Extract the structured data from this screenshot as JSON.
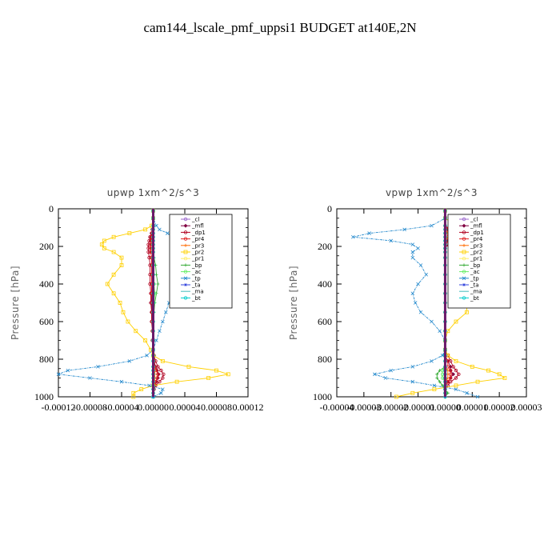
{
  "title": "cam144_lscale_pmf_uppsi1  BUDGET at140E,2N",
  "chart_data": [
    {
      "type": "line",
      "title": "upwp   1xm^2/s^3",
      "ylabel": "Pressure [hPa]",
      "xlabel": "",
      "ylim": [
        1000,
        0
      ],
      "xlim": [
        -0.00012,
        0.00012
      ],
      "yticks": [
        "0",
        "200",
        "400",
        "600",
        "800",
        "1000"
      ],
      "xticks": [
        "-0.00012",
        "-0.00008",
        "-0.00004",
        "0.00000",
        "0.00004",
        "0.00008",
        "0.00012"
      ],
      "legend_position": "top-right",
      "y": [
        10,
        50,
        90,
        110,
        130,
        150,
        170,
        190,
        210,
        230,
        260,
        300,
        350,
        400,
        450,
        500,
        550,
        600,
        650,
        700,
        750,
        780,
        810,
        840,
        860,
        880,
        900,
        920,
        940,
        960,
        980,
        1000
      ],
      "series": [
        {
          "name": "_cl",
          "color": "#9966cc",
          "marker": "circle",
          "values": [
            0,
            0,
            0,
            0,
            0,
            0,
            0,
            0,
            0,
            0,
            0,
            0,
            0,
            0,
            0,
            0,
            0,
            0,
            0,
            0,
            0,
            0,
            0,
            0,
            0,
            0,
            0,
            0,
            0,
            0,
            0,
            0
          ]
        },
        {
          "name": "_mfl",
          "color": "#800040",
          "marker": "diamond",
          "values": [
            0,
            0,
            0,
            -1e-06,
            -2e-06,
            -3e-06,
            -3e-06,
            -3e-06,
            -3e-06,
            -3e-06,
            -2e-06,
            -2e-06,
            -2e-06,
            -2e-06,
            -2e-06,
            -2e-06,
            -2e-06,
            -1e-06,
            -1e-06,
            0,
            0,
            0,
            1e-06,
            3e-06,
            5e-06,
            7e-06,
            6e-06,
            4e-06,
            2e-06,
            0,
            0,
            0
          ]
        },
        {
          "name": "_dp1",
          "color": "#b00020",
          "marker": "circle",
          "values": [
            0,
            0,
            0,
            -1e-06,
            -2e-06,
            -4e-06,
            -5e-06,
            -6e-06,
            -6e-06,
            -6e-06,
            -5e-06,
            -4e-06,
            -4e-06,
            -4e-06,
            -3e-06,
            -3e-06,
            -2e-06,
            -2e-06,
            -1e-06,
            -1e-06,
            0,
            1e-06,
            3e-06,
            6e-06,
            1e-05,
            1.3e-05,
            1.2e-05,
            8e-06,
            3e-06,
            1e-06,
            0,
            0
          ]
        },
        {
          "name": "_pr4",
          "color": "#e02020",
          "marker": "circle",
          "values": [
            0,
            0,
            0,
            0,
            -1e-06,
            -2e-06,
            -2e-06,
            -3e-06,
            -3e-06,
            -3e-06,
            -2e-06,
            -2e-06,
            -2e-06,
            -2e-06,
            -2e-06,
            -1e-06,
            -1e-06,
            -1e-06,
            -1e-06,
            0,
            0,
            0,
            1e-06,
            2e-06,
            4e-06,
            6e-06,
            5e-06,
            3e-06,
            1e-06,
            0,
            0,
            0
          ]
        },
        {
          "name": "_pr3",
          "color": "#ff6a00",
          "marker": "plus",
          "values": [
            0,
            0,
            0,
            0,
            0,
            -1e-06,
            -1e-06,
            -1e-06,
            -1e-06,
            -1e-06,
            -1e-06,
            -1e-06,
            -1e-06,
            -1e-06,
            -1e-06,
            0,
            0,
            0,
            0,
            0,
            0,
            0,
            0,
            1e-06,
            2e-06,
            2e-06,
            2e-06,
            1e-06,
            0,
            0,
            0,
            0
          ]
        },
        {
          "name": "_pr2",
          "color": "#ffd000",
          "marker": "square",
          "values": [
            0,
            0,
            -2e-06,
            -1e-05,
            -3e-05,
            -5e-05,
            -6.2e-05,
            -6.5e-05,
            -6.2e-05,
            -5e-05,
            -4e-05,
            -4e-05,
            -5e-05,
            -5.8e-05,
            -5e-05,
            -4.2e-05,
            -3.8e-05,
            -3.2e-05,
            -2.2e-05,
            -1e-05,
            -3e-06,
            0,
            1.2e-05,
            4.5e-05,
            8e-05,
            9.5e-05,
            7e-05,
            3e-05,
            0,
            -1.5e-05,
            -2.5e-05,
            -2.5e-05
          ]
        },
        {
          "name": "_pr1",
          "color": "#ffee66",
          "marker": "circle",
          "values": [
            0,
            0,
            0,
            0,
            0,
            0,
            0,
            0,
            0,
            0,
            0,
            0,
            0,
            0,
            0,
            0,
            0,
            0,
            0,
            0,
            0,
            0,
            0,
            0,
            0,
            0,
            0,
            0,
            0,
            0,
            0,
            0
          ]
        },
        {
          "name": "_bp",
          "color": "#33aa33",
          "marker": "plus",
          "values": [
            0,
            0,
            0,
            0,
            0,
            0,
            0,
            0,
            0,
            0,
            1e-06,
            3e-06,
            4e-06,
            6e-06,
            4e-06,
            2e-06,
            1e-06,
            0,
            0,
            0,
            0,
            0,
            0,
            0,
            0,
            0,
            0,
            0,
            0,
            0,
            0,
            0
          ]
        },
        {
          "name": "_ac",
          "color": "#66ee66",
          "marker": "circle",
          "values": [
            0,
            0,
            0,
            0,
            0,
            0,
            0,
            0,
            0,
            0,
            0,
            0,
            0,
            1e-06,
            2e-06,
            1e-06,
            0,
            0,
            0,
            0,
            0,
            0,
            0,
            0,
            0,
            0,
            0,
            0,
            0,
            0,
            0,
            0
          ]
        },
        {
          "name": "_tp",
          "color": "#2288cc",
          "marker": "x",
          "values": [
            0,
            0,
            4e-06,
            8e-06,
            1.8e-05,
            2.8e-05,
            3.5e-05,
            3.8e-05,
            4e-05,
            4e-05,
            3.6e-05,
            3.2e-05,
            2.8e-05,
            2.6e-05,
            2.4e-05,
            2e-05,
            1.6e-05,
            1.2e-05,
            8e-06,
            4e-06,
            0,
            -8e-06,
            -3e-05,
            -7e-05,
            -0.000108,
            -0.00012,
            -8e-05,
            -4e-05,
            -5e-06,
            1.2e-05,
            1e-05,
            0
          ]
        },
        {
          "name": "_ta",
          "color": "#3344dd",
          "marker": "star",
          "values": [
            0,
            0,
            0,
            0,
            0,
            0,
            0,
            0,
            0,
            0,
            0,
            0,
            0,
            0,
            0,
            0,
            0,
            0,
            0,
            0,
            0,
            0,
            0,
            0,
            0,
            0,
            0,
            0,
            0,
            0,
            0,
            0
          ]
        },
        {
          "name": "_ma",
          "color": "#44bbbb",
          "marker": "none",
          "values": [
            0,
            0,
            0,
            0,
            0,
            0,
            0,
            0,
            0,
            0,
            0,
            0,
            0,
            0,
            0,
            0,
            0,
            0,
            0,
            0,
            0,
            0,
            0,
            0,
            0,
            0,
            0,
            0,
            0,
            0,
            0,
            0
          ]
        },
        {
          "name": "_bt",
          "color": "#00cccc",
          "marker": "circle",
          "values": [
            0,
            0,
            0,
            0,
            0,
            0,
            0,
            0,
            0,
            0,
            0,
            0,
            0,
            0,
            0,
            0,
            0,
            0,
            0,
            0,
            0,
            0,
            0,
            0,
            0,
            0,
            0,
            0,
            0,
            0,
            0,
            0
          ]
        }
      ]
    },
    {
      "type": "line",
      "title": "vpwp   1xm^2/s^3",
      "ylabel": "Pressure [hPa]",
      "xlabel": "",
      "ylim": [
        1000,
        0
      ],
      "xlim": [
        -4e-05,
        3e-05
      ],
      "yticks": [
        "0",
        "200",
        "400",
        "600",
        "800",
        "1000"
      ],
      "xticks": [
        "-0.00004",
        "-0.00003",
        "-0.00002",
        "-0.00001",
        "0.00000",
        "0.00001",
        "0.00002",
        "0.00003"
      ],
      "legend_position": "top-right",
      "y": [
        10,
        50,
        90,
        110,
        130,
        150,
        170,
        190,
        210,
        230,
        260,
        300,
        350,
        400,
        450,
        500,
        550,
        600,
        650,
        700,
        750,
        780,
        810,
        840,
        860,
        880,
        900,
        920,
        940,
        960,
        980,
        1000
      ],
      "series": [
        {
          "name": "_cl",
          "color": "#9966cc",
          "marker": "circle",
          "values": [
            0,
            0,
            0,
            0,
            0,
            0,
            0,
            0,
            0,
            0,
            0,
            0,
            0,
            0,
            0,
            0,
            0,
            0,
            0,
            0,
            0,
            0,
            0,
            0,
            0,
            0,
            0,
            0,
            0,
            0,
            0,
            0
          ]
        },
        {
          "name": "_mfl",
          "color": "#800040",
          "marker": "diamond",
          "values": [
            0,
            0,
            0,
            1e-06,
            2e-06,
            2e-06,
            1e-06,
            0,
            0,
            0,
            0,
            0,
            0,
            0,
            0,
            0,
            0,
            0,
            0,
            0,
            0,
            0,
            1e-06,
            2e-06,
            2e-06,
            3e-06,
            2e-06,
            1e-06,
            0,
            0,
            0,
            0
          ]
        },
        {
          "name": "_dp1",
          "color": "#b00020",
          "marker": "circle",
          "values": [
            0,
            0,
            0,
            2e-06,
            3e-06,
            3e-06,
            2e-06,
            1e-06,
            0,
            0,
            0,
            0,
            0,
            0,
            0,
            0,
            0,
            0,
            0,
            0,
            0,
            1e-06,
            2e-06,
            3e-06,
            4e-06,
            5e-06,
            4e-06,
            2e-06,
            1e-06,
            0,
            0,
            0
          ]
        },
        {
          "name": "_pr4",
          "color": "#e02020",
          "marker": "circle",
          "values": [
            0,
            0,
            0,
            1e-06,
            1e-06,
            1e-06,
            1e-06,
            0,
            0,
            0,
            0,
            0,
            0,
            0,
            0,
            0,
            0,
            0,
            0,
            0,
            0,
            0,
            1e-06,
            1e-06,
            2e-06,
            2e-06,
            2e-06,
            1e-06,
            0,
            0,
            0,
            0
          ]
        },
        {
          "name": "_pr3",
          "color": "#ff6a00",
          "marker": "plus",
          "values": [
            0,
            0,
            0,
            0,
            1e-06,
            1e-06,
            0,
            0,
            0,
            0,
            0,
            0,
            0,
            0,
            0,
            0,
            0,
            0,
            0,
            0,
            0,
            0,
            0,
            0,
            1e-06,
            1e-06,
            1e-06,
            0,
            0,
            0,
            0,
            0
          ]
        },
        {
          "name": "_pr2",
          "color": "#ffd000",
          "marker": "square",
          "values": [
            0,
            0,
            4e-06,
            1.2e-05,
            2.2e-05,
            2e-05,
            1e-05,
            6e-06,
            6e-06,
            4e-06,
            3e-06,
            4e-06,
            5e-06,
            5e-06,
            6e-06,
            8e-06,
            8e-06,
            4e-06,
            1e-06,
            0,
            0,
            1e-06,
            4e-06,
            1e-05,
            1.6e-05,
            2e-05,
            2.2e-05,
            1.2e-05,
            4e-06,
            -4e-06,
            -1.2e-05,
            -1.8e-05
          ]
        },
        {
          "name": "_pr1",
          "color": "#ffee66",
          "marker": "circle",
          "values": [
            0,
            0,
            0,
            0,
            0,
            0,
            0,
            0,
            0,
            0,
            0,
            0,
            0,
            0,
            0,
            0,
            0,
            0,
            0,
            0,
            0,
            0,
            0,
            0,
            0,
            0,
            0,
            0,
            0,
            0,
            0,
            0
          ]
        },
        {
          "name": "_bp",
          "color": "#33aa33",
          "marker": "plus",
          "values": [
            0,
            0,
            0,
            0,
            0,
            0,
            0,
            0,
            0,
            0,
            0,
            0,
            0,
            0,
            0,
            0,
            0,
            0,
            0,
            0,
            0,
            0,
            0,
            0,
            -2e-06,
            -3e-06,
            -3e-06,
            -2e-06,
            -1e-06,
            0,
            1e-06,
            0
          ]
        },
        {
          "name": "_ac",
          "color": "#66ee66",
          "marker": "circle",
          "values": [
            0,
            0,
            0,
            0,
            0,
            0,
            0,
            0,
            0,
            0,
            0,
            0,
            0,
            0,
            0,
            0,
            0,
            0,
            0,
            0,
            0,
            0,
            0,
            0,
            -1e-06,
            -1e-06,
            -1e-06,
            0,
            0,
            0,
            0,
            0
          ]
        },
        {
          "name": "_tp",
          "color": "#2288cc",
          "marker": "x",
          "values": [
            0,
            0,
            -5e-06,
            -1.5e-05,
            -2.8e-05,
            -3.4e-05,
            -2e-05,
            -1.2e-05,
            -1e-05,
            -1.2e-05,
            -1.2e-05,
            -9e-06,
            -7e-06,
            -1e-05,
            -1.2e-05,
            -1.1e-05,
            -9e-06,
            -5e-06,
            -2e-06,
            0,
            0,
            -1e-06,
            -5e-06,
            -1.2e-05,
            -2e-05,
            -2.6e-05,
            -2.2e-05,
            -1.2e-05,
            -4e-06,
            4e-06,
            8e-06,
            1.2e-05
          ]
        },
        {
          "name": "_ta",
          "color": "#3344dd",
          "marker": "star",
          "values": [
            0,
            0,
            0,
            0,
            0,
            0,
            0,
            0,
            0,
            0,
            0,
            0,
            0,
            0,
            0,
            0,
            0,
            0,
            0,
            0,
            0,
            0,
            0,
            0,
            0,
            0,
            0,
            0,
            0,
            0,
            0,
            0
          ]
        },
        {
          "name": "_ma",
          "color": "#44bbbb",
          "marker": "none",
          "values": [
            0,
            0,
            0,
            0,
            0,
            0,
            0,
            0,
            0,
            0,
            0,
            0,
            0,
            0,
            0,
            0,
            0,
            0,
            0,
            0,
            0,
            0,
            0,
            0,
            0,
            0,
            0,
            0,
            0,
            0,
            0,
            0
          ]
        },
        {
          "name": "_bt",
          "color": "#00cccc",
          "marker": "circle",
          "values": [
            0,
            0,
            0,
            0,
            0,
            0,
            0,
            0,
            0,
            0,
            0,
            0,
            0,
            0,
            0,
            0,
            0,
            0,
            0,
            0,
            0,
            0,
            0,
            0,
            0,
            0,
            0,
            0,
            0,
            0,
            0,
            0
          ]
        }
      ]
    }
  ]
}
